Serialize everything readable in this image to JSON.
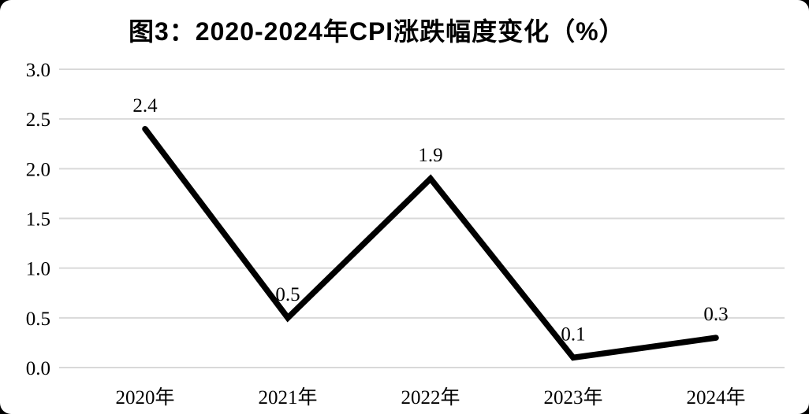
{
  "panel": {
    "background": "#ffffff",
    "outside_background": "#000000"
  },
  "chart_data": {
    "type": "line",
    "title": "图3：2020-2024年CPI涨跌幅度变化（%）",
    "categories": [
      "2020年",
      "2021年",
      "2022年",
      "2023年",
      "2024年"
    ],
    "values": [
      2.4,
      0.5,
      1.9,
      0.1,
      0.3
    ],
    "data_labels": [
      "2.4",
      "0.5",
      "1.9",
      "0.1",
      "0.3"
    ],
    "y_ticks": [
      "3.0",
      "2.5",
      "2.0",
      "1.5",
      "1.0",
      "0.5",
      "0.0"
    ],
    "ylim": [
      0,
      3
    ],
    "xlabel": "",
    "ylabel": "",
    "grid": true,
    "legend": "none",
    "line_color": "#000000",
    "gridline_color": "#d9d9d9",
    "text_color": "#000000"
  }
}
